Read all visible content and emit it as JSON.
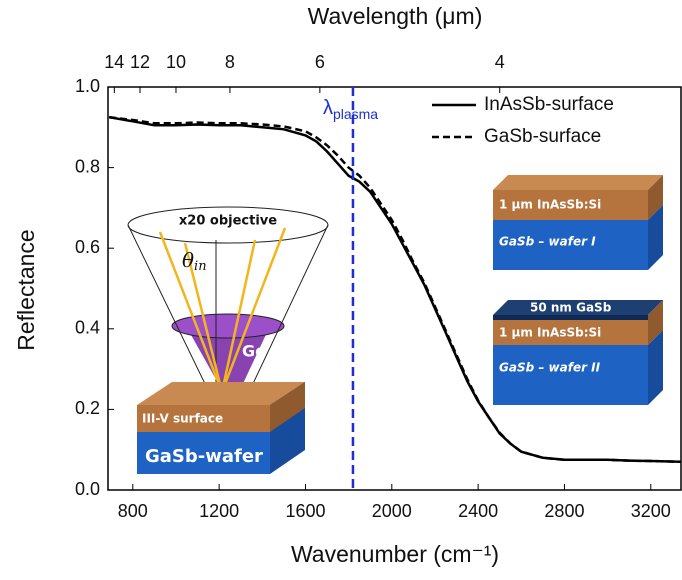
{
  "chart_data": {
    "type": "line",
    "xlabel": "Wavenumber (cm⁻¹)",
    "x2label": "Wavelength (μm)",
    "ylabel": "Reflectance",
    "xlim": [
      685,
      3340
    ],
    "ylim": [
      0,
      1
    ],
    "xticks": [
      800,
      1200,
      1600,
      2000,
      2400,
      2800,
      3200
    ],
    "yticks": [
      {
        "value": 0,
        "label": "0.0"
      },
      0.2,
      0.4,
      0.6,
      0.8,
      {
        "value": 1,
        "label": "1.0"
      }
    ],
    "x2ticks": [
      14,
      12,
      10,
      8,
      6,
      4
    ],
    "legend": "upper right",
    "vline": {
      "x": 1820,
      "label": "λ",
      "label_sub": "plasma",
      "color": "#1a2fd6"
    },
    "x": [
      690,
      800,
      900,
      1000,
      1100,
      1200,
      1300,
      1400,
      1500,
      1600,
      1650,
      1700,
      1750,
      1800,
      1850,
      1900,
      1950,
      2000,
      2050,
      2100,
      2150,
      2200,
      2250,
      2300,
      2350,
      2400,
      2450,
      2500,
      2550,
      2600,
      2700,
      2800,
      2900,
      3000,
      3100,
      3200,
      3340
    ],
    "series": [
      {
        "name": "InAsSb-surface",
        "color": "#000000",
        "dash": false,
        "values": [
          0.925,
          0.915,
          0.905,
          0.905,
          0.907,
          0.905,
          0.905,
          0.9,
          0.895,
          0.88,
          0.865,
          0.84,
          0.81,
          0.78,
          0.765,
          0.74,
          0.7,
          0.66,
          0.61,
          0.56,
          0.51,
          0.45,
          0.39,
          0.33,
          0.27,
          0.22,
          0.18,
          0.14,
          0.115,
          0.095,
          0.08,
          0.075,
          0.075,
          0.075,
          0.073,
          0.072,
          0.07
        ]
      },
      {
        "name": "GaSb-surface",
        "color": "#000000",
        "dash": true,
        "values": [
          0.925,
          0.918,
          0.91,
          0.91,
          0.912,
          0.91,
          0.91,
          0.907,
          0.902,
          0.89,
          0.875,
          0.855,
          0.83,
          0.8,
          0.78,
          0.75,
          0.71,
          0.67,
          0.62,
          0.565,
          0.515,
          0.455,
          0.395,
          0.335,
          0.275,
          0.222,
          0.18,
          0.142,
          0.115,
          0.095,
          0.08,
          0.075,
          0.075,
          0.075,
          0.073,
          0.072,
          0.07
        ]
      }
    ]
  },
  "insets": {
    "objective": "x20 objective",
    "angle": "θ",
    "angle_sub": "in",
    "cone_layer": "Ge",
    "surface": "III-V surface",
    "wafer": "GaSb-wafer",
    "sample1_layer": "1 µm InAsSb:Si",
    "sample1_wafer": "GaSb – wafer I",
    "sample2_cap": "50 nm GaSb",
    "sample2_layer": "1 µm InAsSb:Si",
    "sample2_wafer": "GaSb – wafer II"
  }
}
